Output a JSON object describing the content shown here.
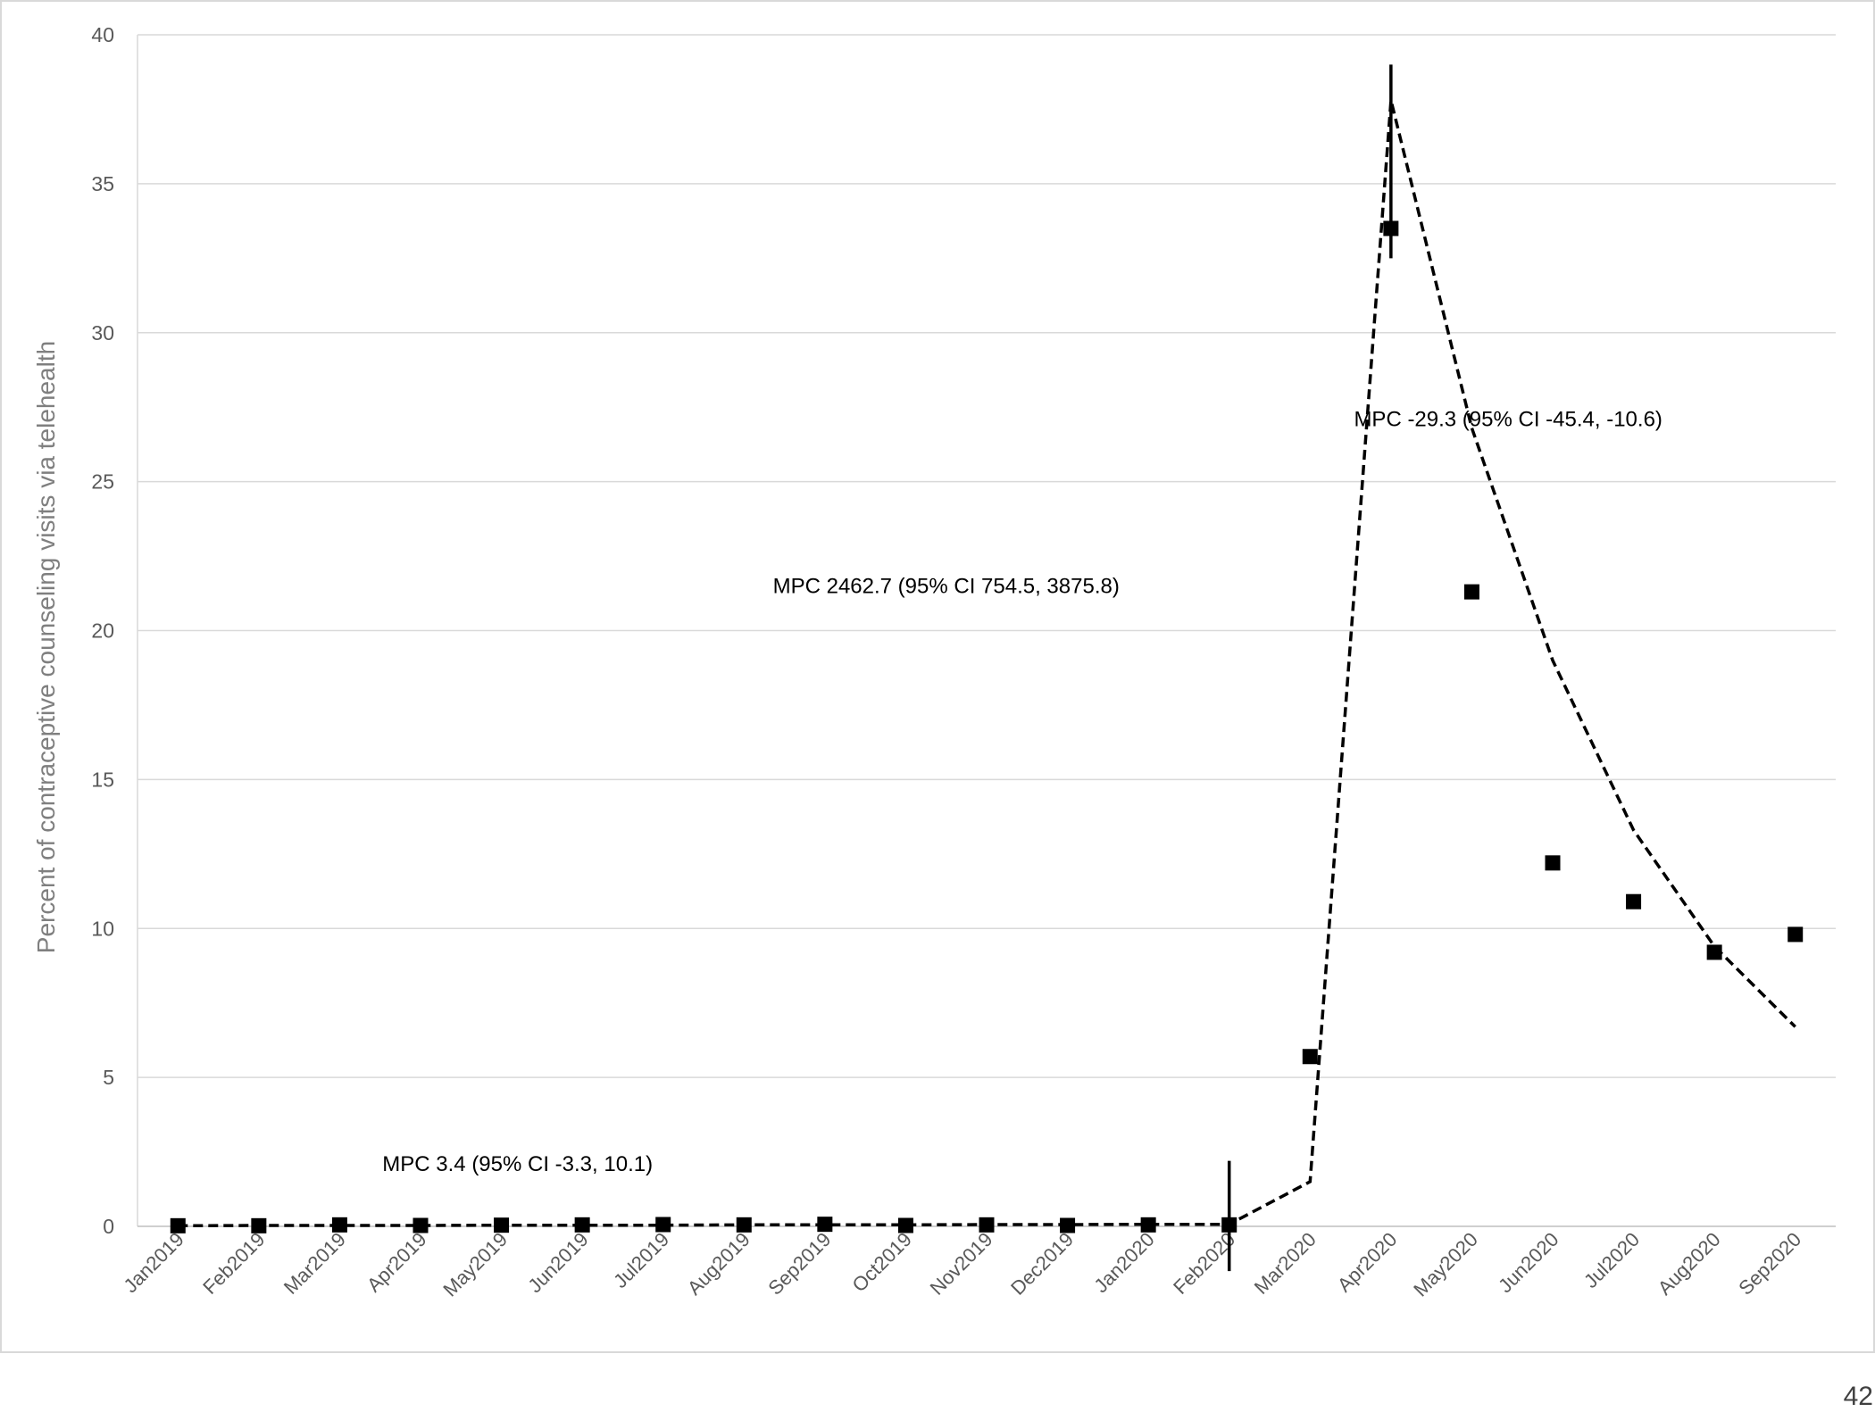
{
  "page": {
    "page_number": "42"
  },
  "chart_data": {
    "type": "scatter",
    "title": "",
    "xlabel": "",
    "ylabel": "Percent of contraceptive counseling visits via telehealth",
    "ylim": [
      0,
      40
    ],
    "yticks": [
      0,
      5,
      10,
      15,
      20,
      25,
      30,
      35,
      40
    ],
    "grid": "horizontal",
    "categories": [
      "Jan2019",
      "Feb2019",
      "Mar2019",
      "Apr2019",
      "May2019",
      "Jun2019",
      "Jul2019",
      "Aug2019",
      "Sep2019",
      "Oct2019",
      "Nov2019",
      "Dec2019",
      "Jan2020",
      "Feb2020",
      "Mar2020",
      "Apr2020",
      "May2020",
      "Jun2020",
      "Jul2020",
      "Aug2020",
      "Sep2020"
    ],
    "series": [
      {
        "kind": "observed",
        "marker": "square",
        "values": [
          0.02,
          0.02,
          0.05,
          0.03,
          0.04,
          0.05,
          0.06,
          0.05,
          0.07,
          0.03,
          0.05,
          0.03,
          0.05,
          0.05,
          5.7,
          33.5,
          21.3,
          12.2,
          10.9,
          9.2,
          9.8
        ]
      },
      {
        "kind": "modeled",
        "style": "dashed",
        "values": [
          0.02,
          0.03,
          0.03,
          0.03,
          0.04,
          0.04,
          0.04,
          0.05,
          0.05,
          0.05,
          0.06,
          0.06,
          0.07,
          0.07,
          1.5,
          37.8,
          26.8,
          19.0,
          13.3,
          9.4,
          6.7
        ]
      }
    ],
    "joinpoints": [
      {
        "category": "Feb2020",
        "low": -1.5,
        "high": 2.2
      },
      {
        "category": "Apr2020",
        "low": 32.5,
        "high": 39.0
      }
    ],
    "annotations": [
      {
        "text": "MPC 3.4 (95% CI -3.3, 10.1)",
        "x_index": 4.2,
        "y": 2.1
      },
      {
        "text": "MPC 2462.7 (95% CI 754.5, 3875.8)",
        "x_index": 9.5,
        "y": 21.5
      },
      {
        "text": "MPC -29.3 (95% CI -45.4, -10.6)",
        "x_index": 16.45,
        "y": 27.1
      }
    ],
    "colors": {
      "marker": "#000000",
      "line": "#000000",
      "grid": "#d9d9d9",
      "axis_text": "#595959",
      "ylabel": "#7f7f7f"
    }
  }
}
